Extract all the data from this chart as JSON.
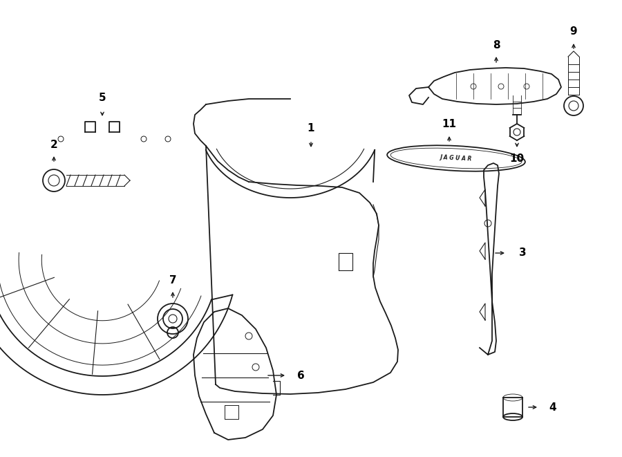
{
  "background_color": "#ffffff",
  "line_color": "#1a1a1a",
  "fig_width": 9.0,
  "fig_height": 6.61
}
